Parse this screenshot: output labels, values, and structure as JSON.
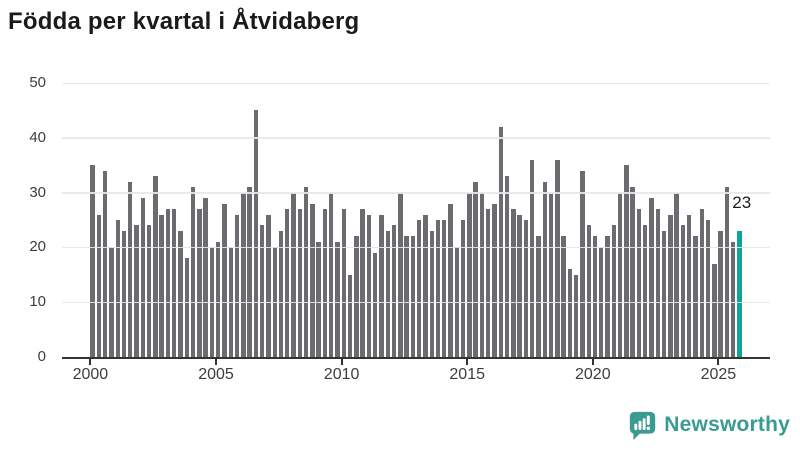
{
  "header": {
    "title": "Födda per kvartal i Åtvidaberg"
  },
  "chart_data": {
    "type": "bar",
    "title": "Födda per kvartal i Åtvidaberg",
    "xlabel": "",
    "ylabel": "",
    "ylim": [
      0,
      50
    ],
    "yticks": [
      0,
      10,
      20,
      30,
      40,
      50
    ],
    "xticks": [
      "2000",
      "2005",
      "2010",
      "2015",
      "2020",
      "2025"
    ],
    "grid": true,
    "legend": "none",
    "bar_color": "#6B6B70",
    "highlight_color": "#0FA3A0",
    "highlight": {
      "position": "last",
      "quarter": "2025 Q4",
      "value": 23,
      "label": "23"
    },
    "series": [
      {
        "name": "Födda per kvartal",
        "unit": "quarters",
        "start": "2000 Q1",
        "end": "2025 Q4",
        "years": [
          {
            "year": "2000",
            "values": [
              35,
              26,
              34,
              20
            ]
          },
          {
            "year": "2001",
            "values": [
              25,
              23,
              32,
              24
            ]
          },
          {
            "year": "2002",
            "values": [
              29,
              24,
              33,
              26
            ]
          },
          {
            "year": "2003",
            "values": [
              27,
              27,
              23,
              18
            ]
          },
          {
            "year": "2004",
            "values": [
              31,
              27,
              29,
              20
            ]
          },
          {
            "year": "2005",
            "values": [
              21,
              28,
              20,
              26
            ]
          },
          {
            "year": "2006",
            "values": [
              30,
              31,
              45,
              24
            ]
          },
          {
            "year": "2007",
            "values": [
              26,
              20,
              23,
              27
            ]
          },
          {
            "year": "2008",
            "values": [
              30,
              27,
              31,
              28
            ]
          },
          {
            "year": "2009",
            "values": [
              21,
              27,
              30,
              21
            ]
          },
          {
            "year": "2010",
            "values": [
              27,
              15,
              22,
              27
            ]
          },
          {
            "year": "2011",
            "values": [
              26,
              19,
              26,
              23
            ]
          },
          {
            "year": "2012",
            "values": [
              24,
              30,
              22,
              22
            ]
          },
          {
            "year": "2013",
            "values": [
              25,
              26,
              23,
              25
            ]
          },
          {
            "year": "2014",
            "values": [
              25,
              28,
              20,
              25
            ]
          },
          {
            "year": "2015",
            "values": [
              30,
              32,
              30,
              27
            ]
          },
          {
            "year": "2016",
            "values": [
              28,
              42,
              33,
              27
            ]
          },
          {
            "year": "2017",
            "values": [
              26,
              25,
              36,
              22
            ]
          },
          {
            "year": "2018",
            "values": [
              32,
              30,
              36,
              22
            ]
          },
          {
            "year": "2019",
            "values": [
              16,
              15,
              34,
              24
            ]
          },
          {
            "year": "2020",
            "values": [
              22,
              20,
              22,
              24
            ]
          },
          {
            "year": "2021",
            "values": [
              30,
              35,
              31,
              27
            ]
          },
          {
            "year": "2022",
            "values": [
              24,
              29,
              27,
              23
            ]
          },
          {
            "year": "2023",
            "values": [
              26,
              30,
              24,
              26
            ]
          },
          {
            "year": "2024",
            "values": [
              22,
              27,
              25,
              17
            ]
          },
          {
            "year": "2025",
            "values": [
              23,
              31,
              21,
              23
            ]
          }
        ]
      }
    ]
  },
  "annotation": {
    "label": "23"
  },
  "branding": {
    "logo_text": "Newsworthy",
    "logo_color": "#3A9B93",
    "icon": "newsworthy-chart-bubble-icon"
  }
}
